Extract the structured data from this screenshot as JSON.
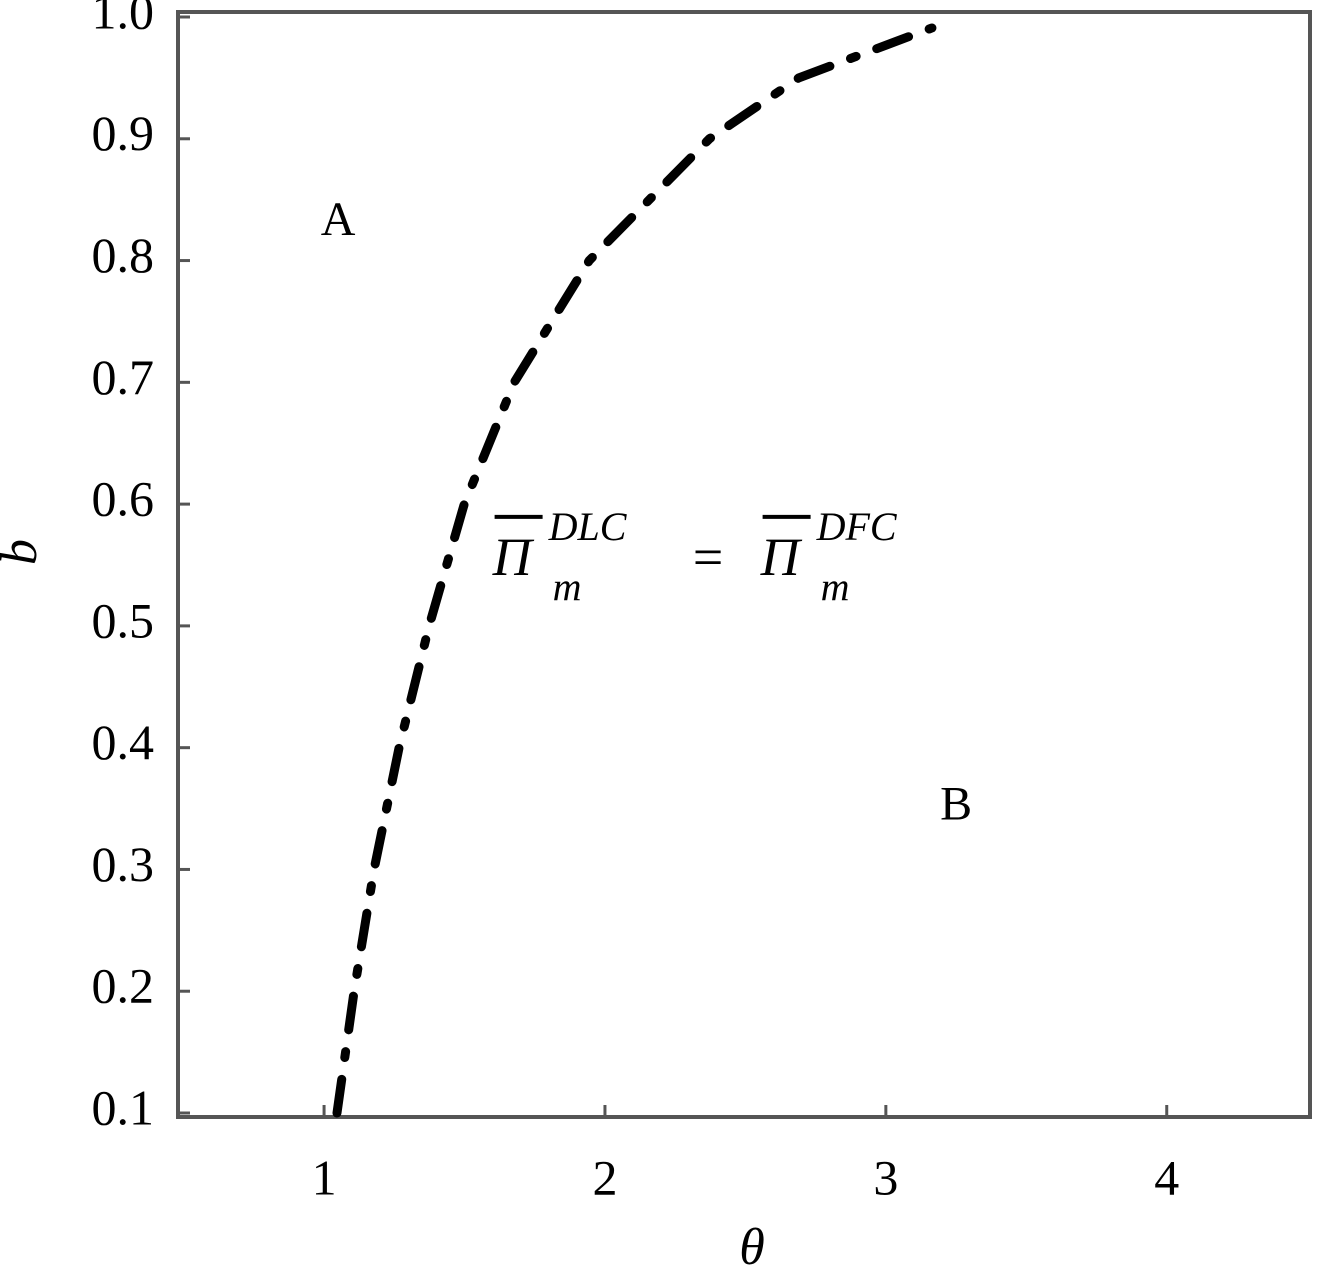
{
  "chart_data": {
    "type": "line",
    "x_label": "θ",
    "y_label": "b",
    "x": [
      1.046,
      1.107,
      1.178,
      1.267,
      1.374,
      1.499,
      1.677,
      1.944,
      2.372,
      2.69,
      3.164
    ],
    "series": [
      {
        "color": "#000000",
        "line_style": "dash-dot",
        "values": [
          0.1,
          0.2,
          0.3,
          0.4,
          0.5,
          0.6,
          0.7,
          0.8,
          0.9,
          0.95,
          0.991
        ]
      }
    ],
    "xlim": [
      0.48,
      4.51
    ],
    "ylim": [
      0.1,
      1.0
    ],
    "xticks": [
      1,
      2,
      3,
      4
    ],
    "yticks": [
      0.1,
      0.2,
      0.3,
      0.4,
      0.5,
      0.6,
      0.7,
      0.8,
      0.9,
      {
        "value": 1,
        "label": "1.0"
      }
    ],
    "grid": false,
    "annotations": [
      {
        "text": "A",
        "x": 1.05,
        "y": 0.83
      },
      {
        "text": "B",
        "x": 3.25,
        "y": 0.35
      }
    ],
    "equation": {
      "left": {
        "base": "Π",
        "sub": "m",
        "sup": "DLC"
      },
      "op": "=",
      "right": {
        "base": "Π",
        "sub": "m",
        "sup": "DFC"
      },
      "x": 1.6,
      "y": 0.56
    }
  }
}
